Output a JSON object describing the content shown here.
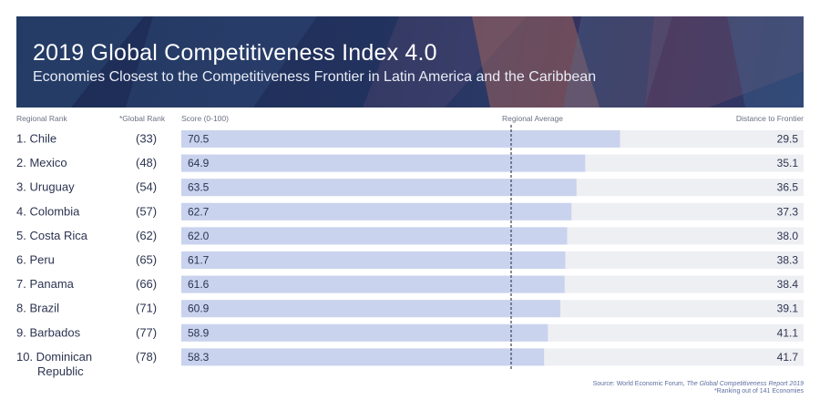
{
  "header": {
    "title": "2019 Global Competitiveness Index 4.0",
    "subtitle": "Economies Closest to the Competitiveness Frontier in Latin America and the Caribbean"
  },
  "columns": {
    "regional_rank": "Regional Rank",
    "global_rank": "*Global Rank",
    "score": "Score (0-100)",
    "regional_average": "Regional Average",
    "distance": "Distance to Frontier"
  },
  "chart_data": {
    "type": "bar",
    "orientation": "horizontal",
    "xlim": [
      0,
      100
    ],
    "regional_average": 53.0,
    "rows": [
      {
        "label": "1. Chile",
        "global_rank": "(33)",
        "score": 70.5,
        "score_label": "70.5",
        "distance": "29.5"
      },
      {
        "label": "2. Mexico",
        "global_rank": "(48)",
        "score": 64.9,
        "score_label": "64.9",
        "distance": "35.1"
      },
      {
        "label": "3. Uruguay",
        "global_rank": "(54)",
        "score": 63.5,
        "score_label": "63.5",
        "distance": "36.5"
      },
      {
        "label": "4. Colombia",
        "global_rank": "(57)",
        "score": 62.7,
        "score_label": "62.7",
        "distance": "37.3"
      },
      {
        "label": "5. Costa Rica",
        "global_rank": "(62)",
        "score": 62.0,
        "score_label": "62.0",
        "distance": "38.0"
      },
      {
        "label": "6. Peru",
        "global_rank": "(65)",
        "score": 61.7,
        "score_label": "61.7",
        "distance": "38.3"
      },
      {
        "label": "7. Panama",
        "global_rank": "(66)",
        "score": 61.6,
        "score_label": "61.6",
        "distance": "38.4"
      },
      {
        "label": "8. Brazil",
        "global_rank": "(71)",
        "score": 60.9,
        "score_label": "60.9",
        "distance": "39.1"
      },
      {
        "label": "9. Barbados",
        "global_rank": "(77)",
        "score": 58.9,
        "score_label": "58.9",
        "distance": "41.1"
      },
      {
        "label": "10. Dominican\nRepublic",
        "global_rank": "(78)",
        "score": 58.3,
        "score_label": "58.3",
        "distance": "41.7"
      }
    ],
    "colors": {
      "bar": "#c9d3ee",
      "track": "#eeeff3",
      "average_line": "#3a3f55",
      "text": "#2b3450"
    }
  },
  "source": {
    "prefix": "Source:  World Economic Forum, ",
    "report": "The Global Competitiveness Report 2019",
    "footnote": "*Ranking out of 141 Economies"
  }
}
